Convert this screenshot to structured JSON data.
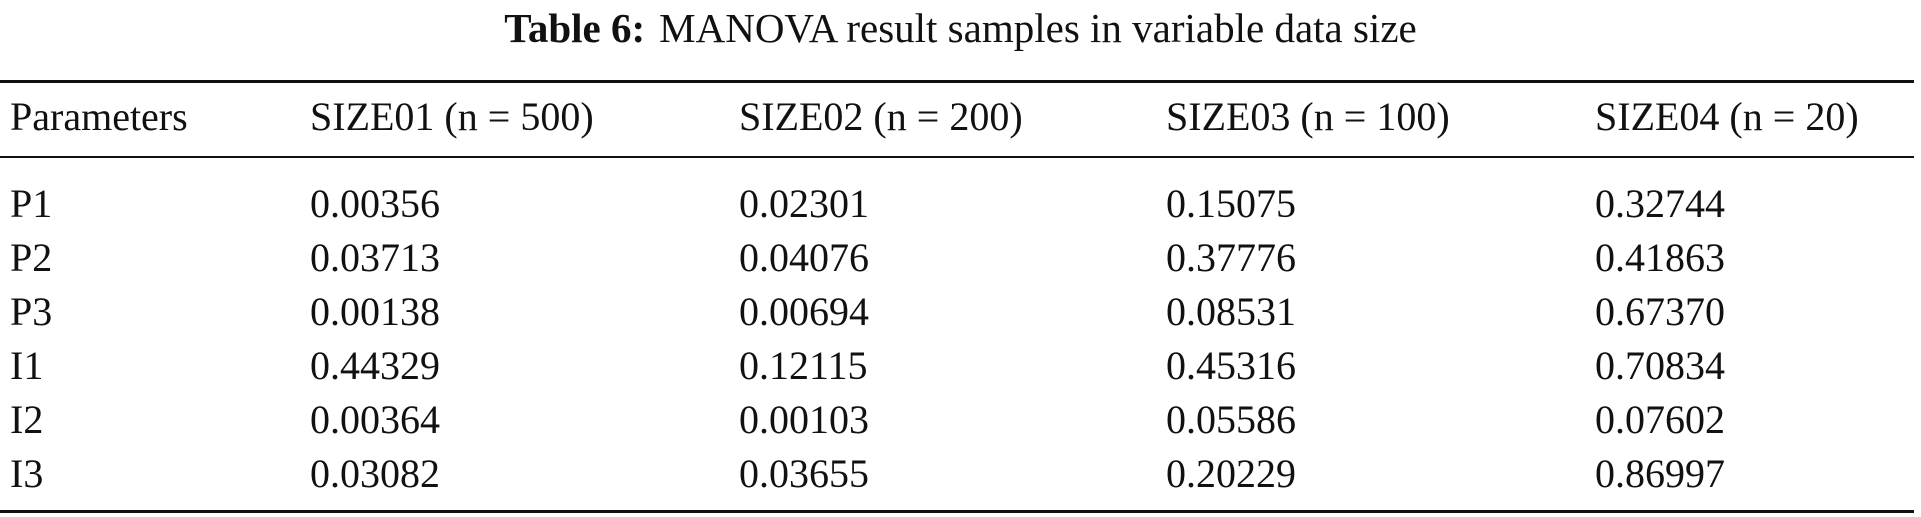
{
  "caption": {
    "label": "Table 6:",
    "title": "MANOVA result samples in variable data size"
  },
  "table": {
    "header": [
      "Parameters",
      "SIZE01 (n = 500)",
      "SIZE02 (n = 200)",
      "SIZE03 (n = 100)",
      "SIZE04 (n = 20)"
    ],
    "rows": [
      [
        "P1",
        "0.00356",
        "0.02301",
        "0.15075",
        "0.32744"
      ],
      [
        "P2",
        "0.03713",
        "0.04076",
        "0.37776",
        "0.41863"
      ],
      [
        "P3",
        "0.00138",
        "0.00694",
        "0.08531",
        "0.67370"
      ],
      [
        "I1",
        "0.44329",
        "0.12115",
        "0.45316",
        "0.70834"
      ],
      [
        "I2",
        "0.00364",
        "0.00103",
        "0.05586",
        "0.07602"
      ],
      [
        "I3",
        "0.03082",
        "0.03655",
        "0.20229",
        "0.86997"
      ]
    ]
  }
}
